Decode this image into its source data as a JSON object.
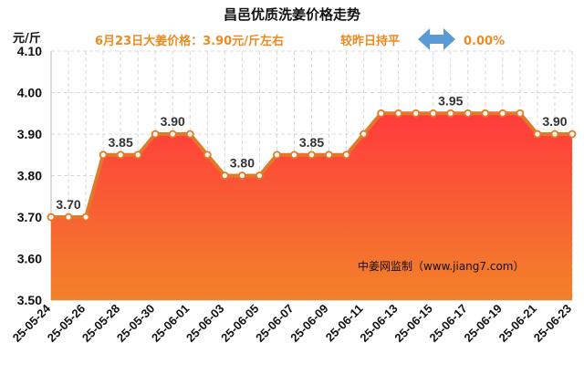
{
  "colors": {
    "accent": "#ee8a22",
    "line": "#e07a2a",
    "fill_top": "#ff3b3b",
    "fill_bottom": "#f2822a",
    "grid": "#d8d8d8",
    "arrow": "#5b9bd5"
  },
  "chart_data": {
    "type": "area",
    "title": "昌邑优质洗姜价格走势",
    "subtitle_left": "6月23日大姜价格：3.90元/斤左右",
    "subtitle_right": "较昨日持平",
    "change": "0.00%",
    "ylabel": "元/斤",
    "ylim": [
      3.5,
      4.1
    ],
    "yticks": [
      "3.50",
      "3.60",
      "3.70",
      "3.80",
      "3.90",
      "4.00",
      "4.10"
    ],
    "x": [
      "25-05-24",
      "25-05-25",
      "25-05-26",
      "25-05-27",
      "25-05-28",
      "25-05-29",
      "25-05-30",
      "25-05-31",
      "25-06-01",
      "25-06-02",
      "25-06-03",
      "25-06-04",
      "25-06-05",
      "25-06-06",
      "25-06-07",
      "25-06-08",
      "25-06-09",
      "25-06-10",
      "25-06-11",
      "25-06-12",
      "25-06-13",
      "25-06-14",
      "25-06-15",
      "25-06-16",
      "25-06-17",
      "25-06-18",
      "25-06-19",
      "25-06-20",
      "25-06-21",
      "25-06-22",
      "25-06-23"
    ],
    "xtick_labels": [
      "25-05-24",
      "25-05-26",
      "25-05-28",
      "25-05-30",
      "25-06-01",
      "25-06-03",
      "25-06-05",
      "25-06-07",
      "25-06-09",
      "25-06-11",
      "25-06-13",
      "25-06-15",
      "25-06-17",
      "25-06-19",
      "25-06-21",
      "25-06-23"
    ],
    "values": [
      3.7,
      3.7,
      3.7,
      3.85,
      3.85,
      3.85,
      3.9,
      3.9,
      3.9,
      3.85,
      3.8,
      3.8,
      3.8,
      3.85,
      3.85,
      3.85,
      3.85,
      3.85,
      3.9,
      3.95,
      3.95,
      3.95,
      3.95,
      3.95,
      3.95,
      3.95,
      3.95,
      3.95,
      3.9,
      3.9,
      3.9
    ],
    "data_labels": [
      {
        "index": 1,
        "text": "3.70"
      },
      {
        "index": 4,
        "text": "3.85"
      },
      {
        "index": 7,
        "text": "3.90"
      },
      {
        "index": 11,
        "text": "3.80"
      },
      {
        "index": 15,
        "text": "3.85"
      },
      {
        "index": 23,
        "text": "3.95"
      },
      {
        "index": 29,
        "text": "3.90"
      }
    ],
    "grid": true,
    "watermark": "中姜网监制（www.jiang7.com）"
  }
}
